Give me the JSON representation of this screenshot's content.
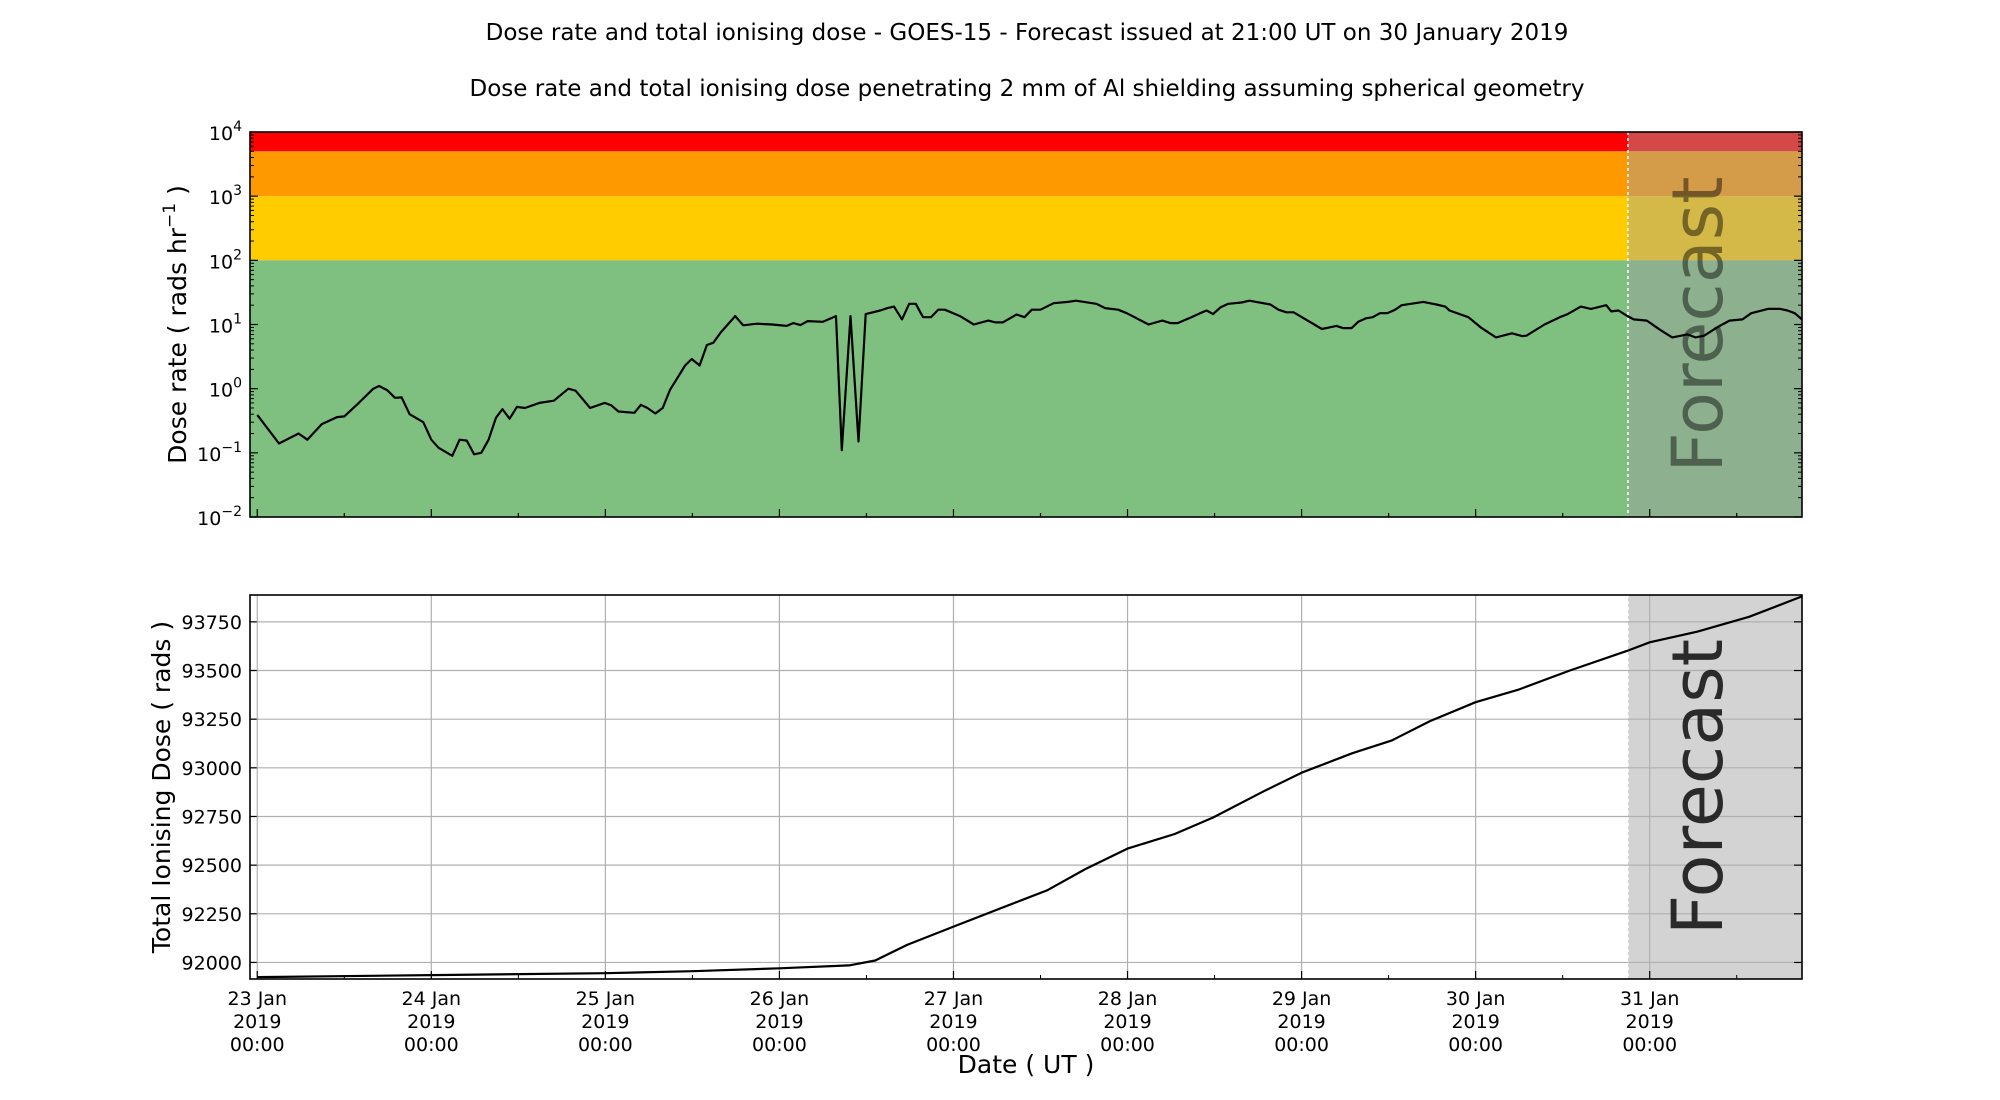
{
  "title": "Dose rate and total ionising dose - GOES-15 - Forecast issued at 21:00 UT on 30 January 2019",
  "subtitle": "Dose rate and total ionising dose penetrating 2 mm of Al shielding assuming spherical geometry",
  "forecast_label": "Forecast",
  "xlabel": "Date ( UT )",
  "x_tick_labels": [
    [
      "23 Jan",
      "2019",
      "00:00"
    ],
    [
      "24 Jan",
      "2019",
      "00:00"
    ],
    [
      "25 Jan",
      "2019",
      "00:00"
    ],
    [
      "26 Jan",
      "2019",
      "00:00"
    ],
    [
      "27 Jan",
      "2019",
      "00:00"
    ],
    [
      "28 Jan",
      "2019",
      "00:00"
    ],
    [
      "29 Jan",
      "2019",
      "00:00"
    ],
    [
      "30 Jan",
      "2019",
      "00:00"
    ],
    [
      "31 Jan",
      "2019",
      "00:00"
    ]
  ],
  "colors": {
    "red": "#ff0000",
    "orange": "#ff9900",
    "yellow": "#ffcc00",
    "green": "#7fc080",
    "forecast_shade": "#d3d3d3",
    "line": "#000000"
  },
  "chart_data": [
    {
      "type": "line",
      "name": "dose-rate",
      "ylabel": "Dose rate ( rads hr",
      "ylabel_sup": "−1",
      "ylabel_end": " )",
      "yscale": "log",
      "ylim": [
        0.01,
        10000
      ],
      "y_tick_labels": [
        {
          "base": "10",
          "exp": "−2"
        },
        {
          "base": "10",
          "exp": "−1"
        },
        {
          "base": "10",
          "exp": "0"
        },
        {
          "base": "10",
          "exp": "1"
        },
        {
          "base": "10",
          "exp": "2"
        },
        {
          "base": "10",
          "exp": "3"
        },
        {
          "base": "10",
          "exp": "4"
        }
      ],
      "x_unit": "hours since 23 Jan 2019 00:00 UT",
      "xlim": [
        -1,
        213
      ],
      "forecast_start": 189,
      "bands": [
        {
          "from": 5000,
          "to": 10000,
          "color": "red"
        },
        {
          "from": 1000,
          "to": 5000,
          "color": "orange"
        },
        {
          "from": 100,
          "to": 1000,
          "color": "yellow"
        },
        {
          "from": 0.01,
          "to": 100,
          "color": "green"
        }
      ],
      "x": [
        0,
        3,
        5.7,
        6.9,
        8.9,
        11,
        12,
        14,
        16,
        16.8,
        17.9,
        19,
        19.9,
        21,
        22.9,
        24,
        25,
        26.9,
        27.9,
        28.9,
        29.9,
        30.9,
        31.9,
        32.9,
        33.8,
        34.8,
        35.8,
        36.9,
        38.9,
        40.9,
        42.9,
        43.9,
        45.9,
        47.9,
        48.8,
        49.8,
        52,
        52.9,
        53.8,
        54.9,
        55.9,
        56.9,
        59,
        59.9,
        61,
        62,
        62.9,
        63.9,
        65.9,
        67,
        68.9,
        71,
        73,
        73.9,
        74.9,
        75.9,
        78,
        79.8,
        80.6,
        81.8,
        82.9,
        83.9,
        85.9,
        86.9,
        87.8,
        88.9,
        89.9,
        90.8,
        91.8,
        92.9,
        93.9,
        94.8,
        96.9,
        98.8,
        100.8,
        101.8,
        102.8,
        104.7,
        105.8,
        106.8,
        108,
        109.8,
        111.8,
        112.9,
        115.7,
        116.9,
        118.7,
        119.9,
        122.9,
        124.8,
        125.9,
        126.9,
        128.8,
        130,
        130.9,
        131.8,
        132.8,
        133.9,
        135.7,
        136.8,
        139.7,
        140.8,
        141.9,
        142.9,
        146.8,
        148.8,
        149.7,
        150.9,
        151.8,
        152.9,
        153.8,
        154.8,
        155.8,
        156.9,
        157.8,
        160.8,
        162.6,
        163.8,
        164.4,
        167,
        168.7,
        170.8,
        173,
        174.4,
        175,
        177.5,
        179.6,
        180.7,
        182.5,
        183.9,
        186,
        186.7,
        187.7,
        188.7,
        189.8,
        191.6,
        193.4,
        195.1,
        197.2,
        198.3,
        199.5,
        201.3,
        203,
        204.8,
        206,
        208.3,
        210,
        211,
        212,
        213
      ],
      "y": [
        0.39,
        0.14,
        0.2,
        0.16,
        0.28,
        0.36,
        0.37,
        0.6,
        1.0,
        1.1,
        0.95,
        0.72,
        0.73,
        0.4,
        0.3,
        0.16,
        0.12,
        0.09,
        0.16,
        0.155,
        0.095,
        0.1,
        0.16,
        0.35,
        0.48,
        0.34,
        0.52,
        0.5,
        0.6,
        0.65,
        1.0,
        0.93,
        0.5,
        0.6,
        0.55,
        0.44,
        0.42,
        0.56,
        0.5,
        0.41,
        0.5,
        0.95,
        2.3,
        2.9,
        2.3,
        4.8,
        5.2,
        7.5,
        13.5,
        9.7,
        10.3,
        10,
        9.5,
        10.5,
        9.8,
        11.3,
        11,
        13.5,
        0.11,
        13.5,
        0.15,
        14.5,
        16.5,
        18,
        19,
        12,
        21,
        21,
        13,
        13,
        17,
        17,
        13.5,
        10,
        11.5,
        10.8,
        10.8,
        14.3,
        13,
        17,
        17,
        21.5,
        22.5,
        23.5,
        21,
        18,
        17,
        15,
        10,
        11.5,
        10.5,
        10.5,
        13,
        15,
        16.5,
        14.5,
        18.5,
        21,
        22,
        23.5,
        20.5,
        17,
        15.5,
        15.5,
        8.5,
        9.5,
        8.8,
        8.8,
        11,
        12.5,
        13,
        15,
        15,
        17,
        20,
        22.5,
        20.5,
        19,
        16.5,
        13,
        9,
        6.3,
        7.3,
        6.6,
        6.7,
        10,
        13,
        14.5,
        19,
        17.5,
        20,
        16,
        16.5,
        14,
        12,
        11.5,
        8.3,
        6.3,
        7,
        6.3,
        6.7,
        9,
        11.5,
        12,
        15,
        17.5,
        17.5,
        16.5,
        15,
        12
      ]
    },
    {
      "type": "line",
      "name": "total-dose",
      "ylabel": "Total Ionising Dose ( rads )",
      "yscale": "linear",
      "ylim": [
        91915,
        93888
      ],
      "y_ticks": [
        92000,
        92250,
        92500,
        92750,
        93000,
        93250,
        93500,
        93750
      ],
      "x_unit": "hours since 23 Jan 2019 00:00 UT",
      "xlim": [
        -1,
        213
      ],
      "forecast_start": 189,
      "grid": true,
      "x": [
        0,
        24,
        48,
        60,
        72,
        81.6,
        85.2,
        89.6,
        96,
        105.4,
        108.9,
        114.2,
        120,
        126.5,
        131.8,
        138.8,
        144,
        151,
        156.4,
        161.7,
        168,
        174,
        181,
        188.8,
        192,
        198.6,
        205.7,
        213
      ],
      "y": [
        91925,
        91935,
        91945,
        91955,
        91970,
        91985,
        92010,
        92090,
        92184,
        92320,
        92370,
        92480,
        92585,
        92660,
        92745,
        92880,
        92975,
        93075,
        93140,
        93240,
        93337,
        93403,
        93500,
        93600,
        93645,
        93700,
        93776,
        93881
      ]
    }
  ]
}
